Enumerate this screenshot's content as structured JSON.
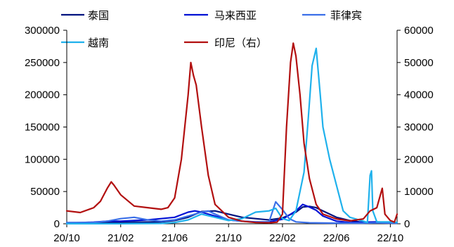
{
  "chart_data": {
    "type": "line",
    "title": "",
    "xlabel": "",
    "ylabel": "",
    "y_left": {
      "range": [
        0,
        300000
      ],
      "ticks": [
        0,
        50000,
        100000,
        150000,
        200000,
        250000,
        300000
      ],
      "labels": [
        "0",
        "50000",
        "100000",
        "150000",
        "200000",
        "250000",
        "300000"
      ]
    },
    "y_right": {
      "range": [
        0,
        60000
      ],
      "ticks": [
        0,
        10000,
        20000,
        30000,
        40000,
        50000,
        60000
      ],
      "labels": [
        "0",
        "10000",
        "20000",
        "30000",
        "40000",
        "50000",
        "60000"
      ]
    },
    "x_axis": {
      "range": [
        0,
        24.5
      ],
      "ticks": [
        0,
        4,
        8,
        12,
        16,
        20,
        24
      ],
      "labels": [
        "20/10",
        "21/02",
        "21/06",
        "21/10",
        "22/02",
        "22/06",
        "22/10"
      ],
      "unit": "months since 2020-10"
    },
    "grid": false,
    "legend": {
      "placement": "top",
      "columns": 3
    },
    "series": [
      {
        "name": "泰国",
        "axis": "left",
        "color": "#00137f",
        "points": [
          [
            0,
            1500
          ],
          [
            3,
            2000
          ],
          [
            5,
            2500
          ],
          [
            7,
            3000
          ],
          [
            8,
            5000
          ],
          [
            9,
            10000
          ],
          [
            10,
            19000
          ],
          [
            11,
            20000
          ],
          [
            12,
            15000
          ],
          [
            13,
            10000
          ],
          [
            14,
            8000
          ],
          [
            15,
            6000
          ],
          [
            16,
            9000
          ],
          [
            17,
            18000
          ],
          [
            17.5,
            26000
          ],
          [
            18,
            27000
          ],
          [
            18.5,
            25000
          ],
          [
            19,
            20000
          ],
          [
            20,
            10000
          ],
          [
            21,
            5000
          ],
          [
            22,
            2000
          ],
          [
            23,
            1500
          ],
          [
            24,
            1500
          ],
          [
            24.5,
            1500
          ]
        ]
      },
      {
        "name": "马来西亚",
        "axis": "left",
        "color": "#0011d5",
        "points": [
          [
            0,
            1000
          ],
          [
            2,
            2500
          ],
          [
            3,
            4000
          ],
          [
            4,
            4000
          ],
          [
            5,
            5000
          ],
          [
            6,
            6000
          ],
          [
            7,
            8000
          ],
          [
            8,
            10000
          ],
          [
            9,
            18000
          ],
          [
            9.5,
            20000
          ],
          [
            10,
            18000
          ],
          [
            11,
            12000
          ],
          [
            12,
            6000
          ],
          [
            13,
            4000
          ],
          [
            14,
            3000
          ],
          [
            15,
            3000
          ],
          [
            16,
            7000
          ],
          [
            17,
            20000
          ],
          [
            17.5,
            30000
          ],
          [
            18,
            26000
          ],
          [
            18.5,
            21000
          ],
          [
            19,
            12000
          ],
          [
            20,
            4000
          ],
          [
            21,
            2000
          ],
          [
            22,
            2500
          ],
          [
            23,
            3000
          ],
          [
            24,
            2000
          ],
          [
            24.5,
            2000
          ]
        ]
      },
      {
        "name": "菲律宾",
        "axis": "left",
        "color": "#3a6fe8",
        "points": [
          [
            0,
            2000
          ],
          [
            2,
            2000
          ],
          [
            3,
            4000
          ],
          [
            4,
            8000
          ],
          [
            5,
            10000
          ],
          [
            6,
            6000
          ],
          [
            7,
            4000
          ],
          [
            8,
            6000
          ],
          [
            9,
            12000
          ],
          [
            10,
            18000
          ],
          [
            10.5,
            20000
          ],
          [
            11,
            15000
          ],
          [
            12,
            6000
          ],
          [
            13,
            4000
          ],
          [
            14,
            2500
          ],
          [
            15,
            3000
          ],
          [
            15.5,
            34000
          ],
          [
            16,
            22000
          ],
          [
            16.5,
            8000
          ],
          [
            17,
            3000
          ],
          [
            18,
            1500
          ],
          [
            20,
            1000
          ],
          [
            22,
            1000
          ],
          [
            23,
            1500
          ],
          [
            24,
            1000
          ],
          [
            24.5,
            1000
          ]
        ]
      },
      {
        "name": "越南",
        "axis": "left",
        "color": "#1fb1ec",
        "points": [
          [
            0,
            100
          ],
          [
            4,
            100
          ],
          [
            7,
            500
          ],
          [
            8,
            2000
          ],
          [
            9,
            6000
          ],
          [
            10,
            15000
          ],
          [
            11,
            10000
          ],
          [
            12,
            5000
          ],
          [
            13,
            8000
          ],
          [
            14,
            18000
          ],
          [
            15,
            20000
          ],
          [
            15.5,
            24000
          ],
          [
            16,
            8000
          ],
          [
            16.5,
            5000
          ],
          [
            17,
            20000
          ],
          [
            17.6,
            80000
          ],
          [
            17.9,
            160000
          ],
          [
            18.2,
            245000
          ],
          [
            18.5,
            272000
          ],
          [
            18.8,
            200000
          ],
          [
            19,
            150000
          ],
          [
            19.5,
            100000
          ],
          [
            20,
            60000
          ],
          [
            20.5,
            20000
          ],
          [
            21,
            10000
          ],
          [
            22,
            4000
          ],
          [
            22.3,
            2000
          ],
          [
            22.5,
            75000
          ],
          [
            22.6,
            82000
          ],
          [
            22.7,
            20000
          ],
          [
            23,
            3000
          ],
          [
            24,
            3000
          ],
          [
            24.5,
            2000
          ]
        ]
      },
      {
        "name": "印尼（右）",
        "axis": "right",
        "color": "#b20f0f",
        "points": [
          [
            0,
            4000
          ],
          [
            1,
            3500
          ],
          [
            2,
            5000
          ],
          [
            2.5,
            7000
          ],
          [
            3,
            11000
          ],
          [
            3.3,
            13000
          ],
          [
            3.5,
            12000
          ],
          [
            4,
            9000
          ],
          [
            5,
            5500
          ],
          [
            6,
            5000
          ],
          [
            7,
            4500
          ],
          [
            7.5,
            5000
          ],
          [
            8,
            8000
          ],
          [
            8.5,
            20000
          ],
          [
            9,
            40000
          ],
          [
            9.2,
            50000
          ],
          [
            9.4,
            46000
          ],
          [
            9.6,
            43000
          ],
          [
            10,
            30000
          ],
          [
            10.5,
            15000
          ],
          [
            11,
            6000
          ],
          [
            12,
            2000
          ],
          [
            13,
            800
          ],
          [
            14,
            400
          ],
          [
            15,
            300
          ],
          [
            15.6,
            500
          ],
          [
            16,
            3000
          ],
          [
            16.3,
            30000
          ],
          [
            16.6,
            50000
          ],
          [
            16.8,
            56000
          ],
          [
            17,
            52000
          ],
          [
            17.3,
            40000
          ],
          [
            17.6,
            25000
          ],
          [
            18,
            14000
          ],
          [
            18.5,
            6000
          ],
          [
            19,
            3000
          ],
          [
            20,
            1500
          ],
          [
            21,
            900
          ],
          [
            22,
            1500
          ],
          [
            22.5,
            4000
          ],
          [
            23,
            5000
          ],
          [
            23.4,
            11000
          ],
          [
            23.6,
            3000
          ],
          [
            24,
            1000
          ],
          [
            24.3,
            500
          ],
          [
            24.5,
            3000
          ]
        ]
      }
    ]
  }
}
